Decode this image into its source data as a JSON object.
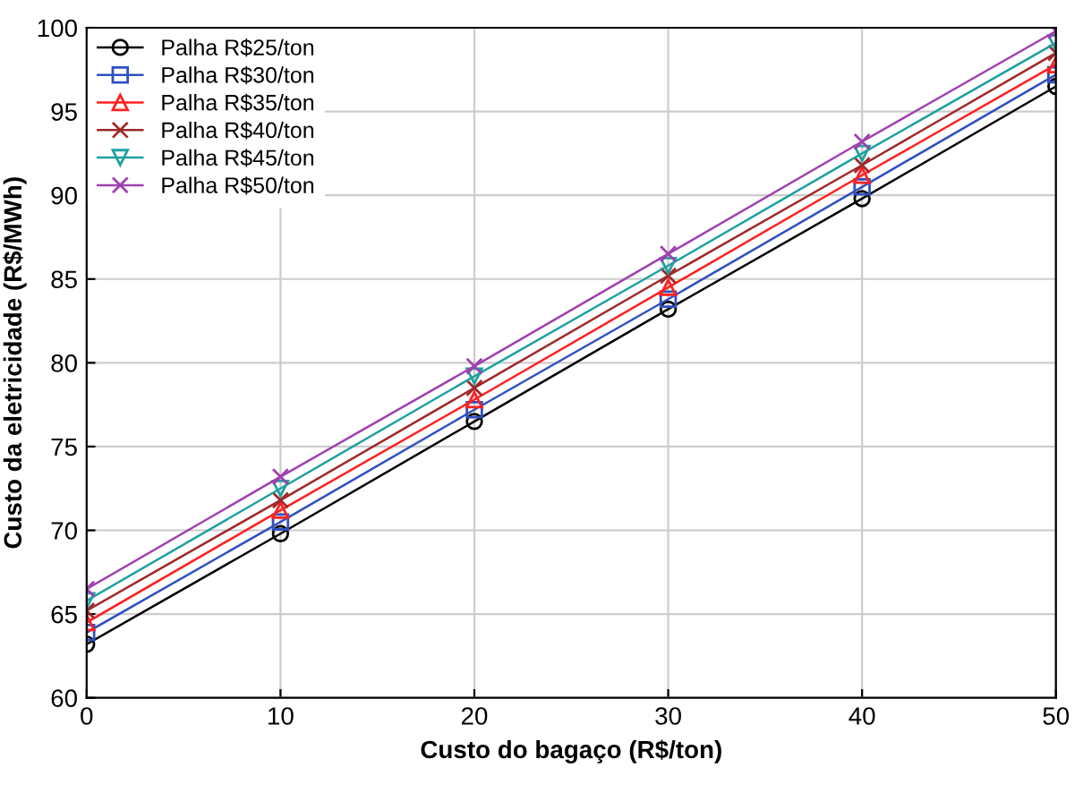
{
  "chart_data": {
    "type": "line",
    "xlabel": "Custo do bagaço (R$/ton)",
    "ylabel": "Custo da eletricidade (R$/MWh)",
    "x": [
      0,
      10,
      20,
      30,
      40,
      50
    ],
    "series": [
      {
        "name": "Palha R$25/ton",
        "color": "#000000",
        "marker": "circle",
        "values": [
          63.2,
          69.8,
          76.5,
          83.2,
          89.8,
          96.5
        ]
      },
      {
        "name": "Palha R$30/ton",
        "color": "#3050c0",
        "marker": "square",
        "values": [
          63.9,
          70.5,
          77.2,
          83.8,
          90.5,
          97.2
        ]
      },
      {
        "name": "Palha R$35/ton",
        "color": "#ff2020",
        "marker": "triangle",
        "values": [
          64.5,
          71.2,
          77.8,
          84.5,
          91.2,
          97.8
        ]
      },
      {
        "name": "Palha R$40/ton",
        "color": "#a02828",
        "marker": "cross",
        "values": [
          65.2,
          71.8,
          78.5,
          85.2,
          91.8,
          98.5
        ]
      },
      {
        "name": "Palha R$45/ton",
        "color": "#20a0a0",
        "marker": "triangle_down",
        "values": [
          65.8,
          72.5,
          79.2,
          85.8,
          92.5,
          99.1
        ]
      },
      {
        "name": "Palha R$50/ton",
        "color": "#a040b0",
        "marker": "cross",
        "values": [
          66.5,
          73.2,
          79.8,
          86.5,
          93.2,
          99.8
        ]
      }
    ],
    "xlim": [
      0,
      50
    ],
    "ylim": [
      60,
      100
    ],
    "xticks": [
      0,
      10,
      20,
      30,
      40,
      50
    ],
    "yticks": [
      60,
      65,
      70,
      75,
      80,
      85,
      90,
      95,
      100
    ],
    "grid": true,
    "legend": "top left",
    "line_style": "solid"
  }
}
